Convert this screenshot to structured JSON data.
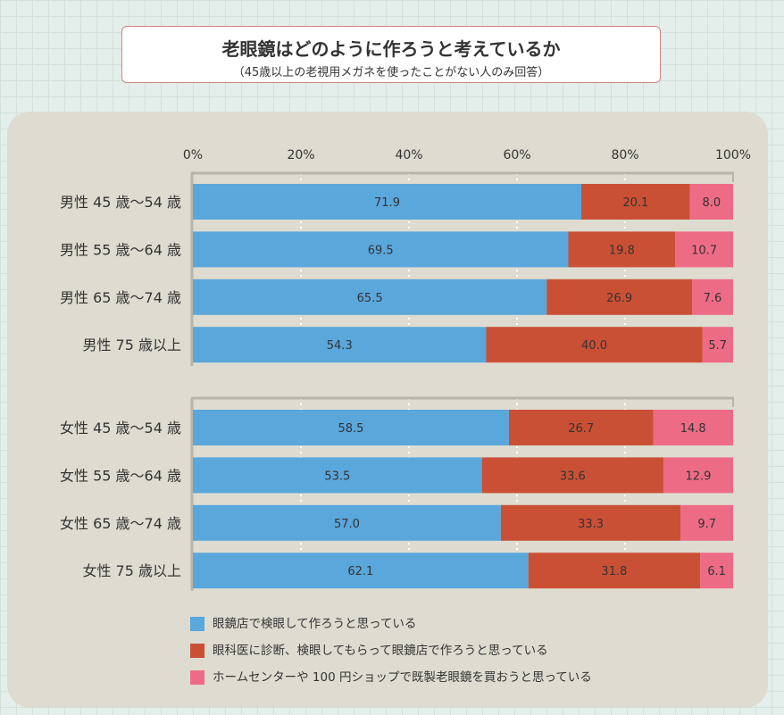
{
  "title": {
    "main": "老眼鏡はどのように作ろうと考えているか",
    "sub": "（45歳以上の老視用メガネを使ったことがない人のみ回答）"
  },
  "colors": {
    "store": "#5aa7dc",
    "doctor": "#ca5035",
    "readymade": "#ee6b86",
    "panel": "#dedcd0",
    "axis": "#b8b6aa",
    "grid": "#ffffff"
  },
  "chart_data": {
    "type": "bar",
    "orientation": "horizontal",
    "stacked": true,
    "xlim": [
      0,
      100
    ],
    "ticks": [
      "0%",
      "20%",
      "40%",
      "60%",
      "80%",
      "100%"
    ],
    "groups": [
      {
        "categories": [
          "男性 45 歳〜54 歳",
          "男性 55 歳〜64 歳",
          "男性 65 歳〜74 歳",
          "男性 75 歳以上"
        ]
      },
      {
        "categories": [
          "女性 45 歳〜54 歳",
          "女性 55 歳〜64 歳",
          "女性 65 歳〜74 歳",
          "女性 75 歳以上"
        ]
      }
    ],
    "series": [
      {
        "name": "眼鏡店で検眼して作ろうと思っている",
        "color": "#5aa7dc",
        "values": [
          71.9,
          69.5,
          65.5,
          54.3,
          58.5,
          53.5,
          57.0,
          62.1
        ],
        "labels": [
          "71.9",
          "69.5",
          "65.5",
          "54.3",
          "58.5",
          "53.5",
          "57.0",
          "62.1"
        ]
      },
      {
        "name": "眼科医に診断、検眼してもらって眼鏡店で作ろうと思っている",
        "color": "#ca5035",
        "values": [
          20.1,
          19.8,
          26.9,
          40.0,
          26.7,
          33.6,
          33.3,
          31.8
        ],
        "labels": [
          "20.1",
          "19.8",
          "26.9",
          "40.0",
          "26.7",
          "33.6",
          "33.3",
          "31.8"
        ]
      },
      {
        "name": "ホームセンターや 100 円ショップで既製老眼鏡を買おうと思っている",
        "color": "#ee6b86",
        "values": [
          8.0,
          10.7,
          7.6,
          5.7,
          14.8,
          12.9,
          9.7,
          6.1
        ],
        "labels": [
          "8.0",
          "10.7",
          "7.6",
          "5.7",
          "14.8",
          "12.9",
          "9.7",
          "6.1"
        ]
      }
    ]
  }
}
